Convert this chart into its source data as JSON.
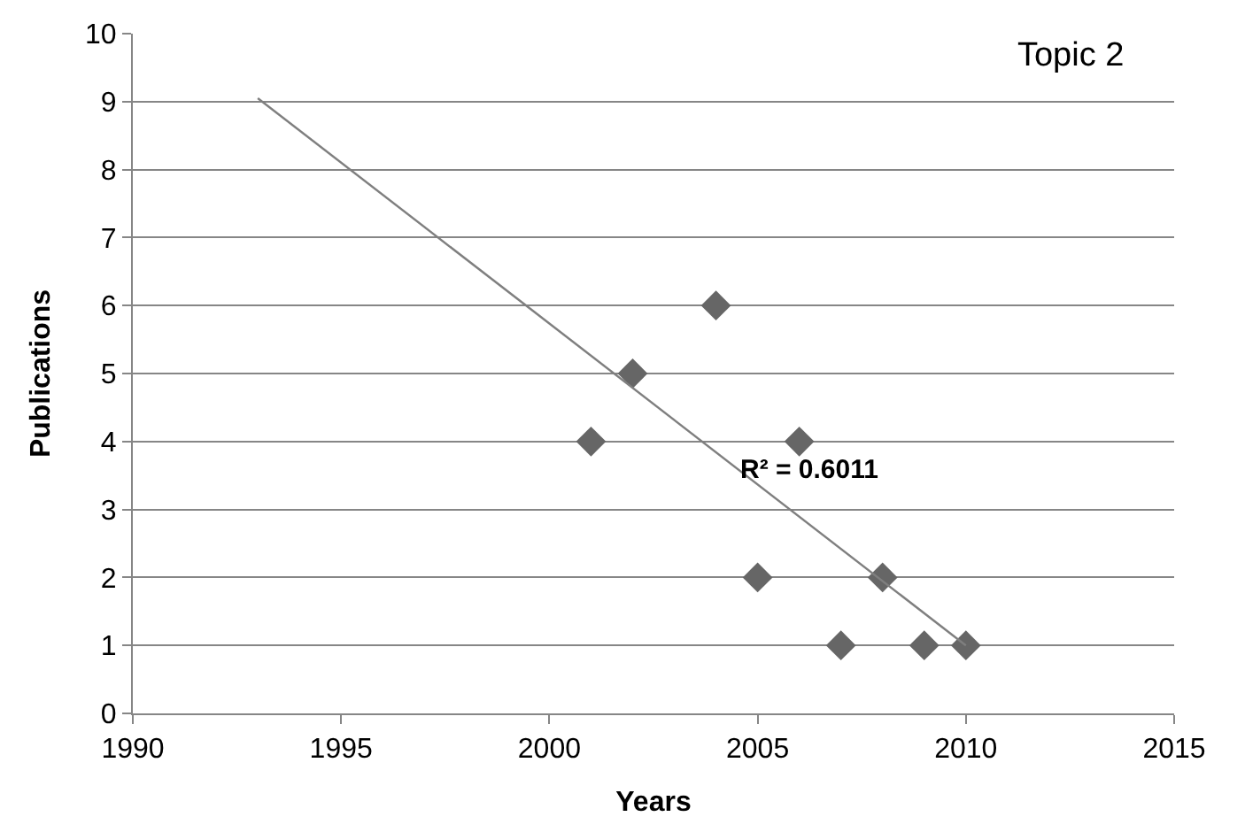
{
  "chart_data": {
    "type": "scatter",
    "title": "Topic 2",
    "xlabel": "Years",
    "ylabel": "Publications",
    "series": [
      {
        "color": "#666666",
        "x": [
          2001,
          2002,
          2004,
          2005,
          2006,
          2007,
          2008,
          2009,
          2010
        ],
        "values": [
          4,
          5,
          6,
          2,
          4,
          1,
          2,
          1,
          1
        ],
        "marker": "diamond"
      },
      {
        "type": "line",
        "color": "#7f7f7f",
        "x": [
          1993,
          2010
        ],
        "values": [
          9.05,
          1.0
        ],
        "line_style": "solid"
      }
    ],
    "annotations": [
      "R² = 0.6011"
    ],
    "xlim": [
      1990,
      2015
    ],
    "xticks": [
      1990,
      1995,
      2000,
      2005,
      2010,
      2015
    ],
    "ylim": [
      0,
      10
    ],
    "yticks": [
      0,
      1,
      2,
      3,
      4,
      5,
      6,
      7,
      8,
      9,
      10
    ],
    "grid": "y"
  }
}
